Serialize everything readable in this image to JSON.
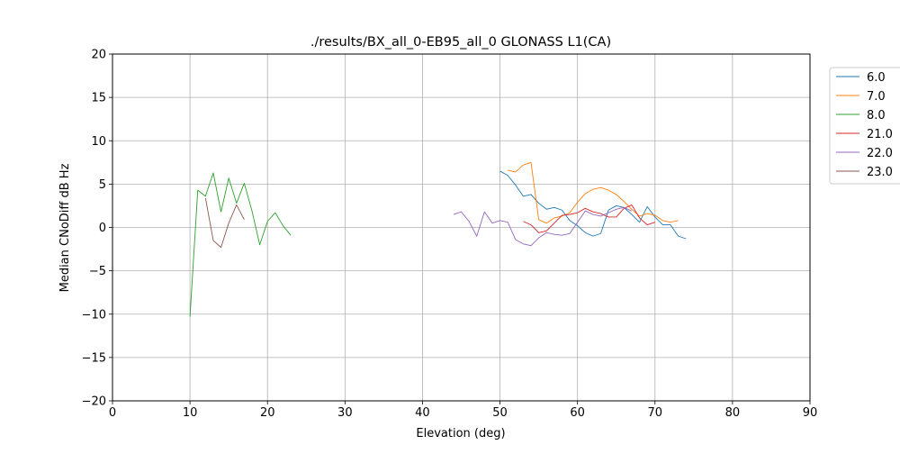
{
  "chart_data": {
    "type": "line",
    "title": "./results/BX_all_0-EB95_all_0 GLONASS L1(CA)",
    "xlabel": "Elevation (deg)",
    "ylabel": "Median CNoDiff dB Hz",
    "xlim": [
      0,
      90
    ],
    "ylim": [
      -20,
      20
    ],
    "xticks": [
      0,
      10,
      20,
      30,
      40,
      50,
      60,
      70,
      80,
      90
    ],
    "yticks": [
      -20,
      -15,
      -10,
      -5,
      0,
      5,
      10,
      15,
      20
    ],
    "xtick_labels": [
      "0",
      "10",
      "20",
      "30",
      "40",
      "50",
      "60",
      "70",
      "80",
      "90"
    ],
    "ytick_labels": [
      "−20",
      "−15",
      "−10",
      "−5",
      "0",
      "5",
      "10",
      "15",
      "20"
    ],
    "grid": true,
    "legend_position": "top-right-outside",
    "series": [
      {
        "name": "6.0",
        "color": "#1f77b4",
        "x": [
          50,
          51,
          52,
          53,
          54,
          55,
          56,
          57,
          58,
          59,
          60,
          61,
          62,
          63,
          64,
          65,
          66,
          67,
          68,
          69,
          70,
          71,
          72,
          73,
          74
        ],
        "y": [
          6.5,
          6.0,
          4.9,
          3.6,
          3.8,
          2.8,
          2.1,
          2.3,
          2.0,
          0.8,
          0.2,
          -0.6,
          -1.0,
          -0.7,
          2.0,
          2.5,
          2.3,
          1.5,
          0.6,
          2.4,
          1.2,
          0.3,
          0.3,
          -1.0,
          -1.3
        ]
      },
      {
        "name": "7.0",
        "color": "#ff7f0e",
        "x": [
          51,
          52,
          53,
          54,
          55,
          56,
          57,
          58,
          59,
          60,
          61,
          62,
          63,
          64,
          65,
          66,
          67,
          68,
          69,
          70,
          71,
          72,
          73
        ],
        "y": [
          6.6,
          6.4,
          7.2,
          7.5,
          0.9,
          0.5,
          1.1,
          1.3,
          1.7,
          2.9,
          3.9,
          4.4,
          4.6,
          4.3,
          3.8,
          3.0,
          2.1,
          1.3,
          1.6,
          1.4,
          0.8,
          0.6,
          0.8
        ]
      },
      {
        "name": "8.0",
        "color": "#2ca02c",
        "x": [
          10,
          11,
          12,
          13,
          14,
          15,
          16,
          17,
          18,
          19,
          20,
          21,
          22,
          23
        ],
        "y": [
          -10.3,
          4.3,
          3.6,
          6.3,
          1.8,
          5.7,
          2.8,
          5.1,
          1.9,
          -2.0,
          0.7,
          1.7,
          0.2,
          -0.9
        ]
      },
      {
        "name": "21.0",
        "color": "#d62728",
        "x": [
          53,
          54,
          55,
          56,
          57,
          58,
          59,
          60,
          61,
          62,
          63,
          64,
          65,
          66,
          67,
          68,
          69,
          70
        ],
        "y": [
          0.7,
          0.3,
          -0.6,
          -0.4,
          0.5,
          1.4,
          1.5,
          1.7,
          2.2,
          1.8,
          1.6,
          1.2,
          1.2,
          2.2,
          2.6,
          1.1,
          0.3,
          0.6
        ]
      },
      {
        "name": "22.0",
        "color": "#9467bd",
        "x": [
          44,
          45,
          46,
          47,
          48,
          49,
          50,
          51,
          52,
          53,
          54,
          55,
          56,
          57,
          58,
          59,
          60,
          61,
          62,
          63,
          64,
          65,
          66,
          67
        ],
        "y": [
          1.5,
          1.8,
          0.7,
          -1.0,
          1.8,
          0.5,
          0.8,
          0.6,
          -1.4,
          -1.9,
          -2.1,
          -1.2,
          -0.6,
          -0.8,
          -0.9,
          -0.7,
          0.6,
          1.9,
          1.5,
          1.3,
          1.7,
          2.1,
          2.3,
          1.9
        ]
      },
      {
        "name": "23.0",
        "color": "#8c564b",
        "x": [
          12,
          13,
          14,
          15,
          16,
          17
        ],
        "y": [
          3.4,
          -1.5,
          -2.3,
          0.5,
          2.6,
          0.9
        ]
      }
    ]
  }
}
